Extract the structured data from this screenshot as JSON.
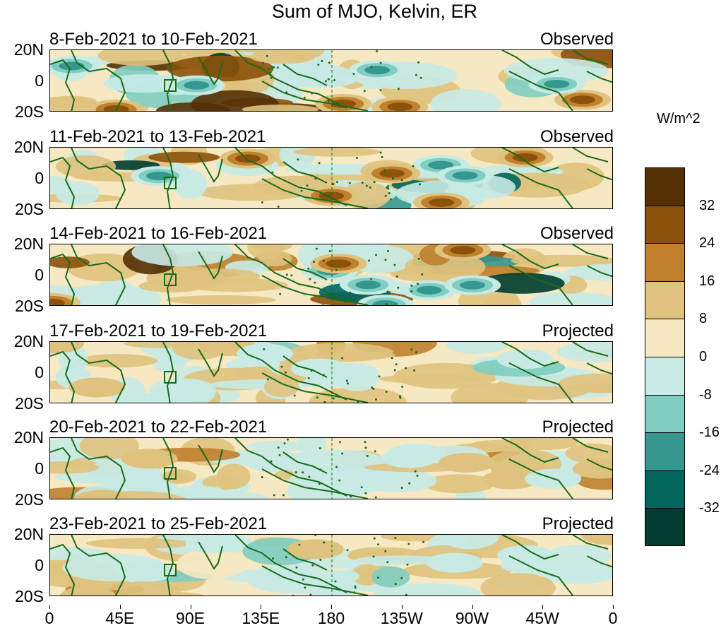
{
  "title": "Sum of MJO, Kelvin, ER",
  "units": "W/m^2",
  "panels": [
    {
      "date_range": "8-Feb-2021 to 10-Feb-2021",
      "status": "Observed"
    },
    {
      "date_range": "11-Feb-2021 to 13-Feb-2021",
      "status": "Observed"
    },
    {
      "date_range": "14-Feb-2021 to 16-Feb-2021",
      "status": "Observed"
    },
    {
      "date_range": "17-Feb-2021 to 19-Feb-2021",
      "status": "Projected"
    },
    {
      "date_range": "20-Feb-2021 to 22-Feb-2021",
      "status": "Projected"
    },
    {
      "date_range": "23-Feb-2021 to 25-Feb-2021",
      "status": "Projected"
    }
  ],
  "lat_labels": [
    "20N",
    "0",
    "20S"
  ],
  "lon_labels": [
    "0",
    "45E",
    "90E",
    "135E",
    "180",
    "135W",
    "90W",
    "45W",
    "0"
  ],
  "colorbar": {
    "labels": [
      "32",
      "24",
      "16",
      "8",
      "0",
      "-8",
      "-16",
      "-24",
      "-32"
    ],
    "colors": [
      "#543005",
      "#8c510a",
      "#bf812d",
      "#dfc27d",
      "#f6e8c3",
      "#c7eae5",
      "#80cdc1",
      "#35978f",
      "#01665e",
      "#003c30"
    ]
  },
  "map_colors": {
    "coast": "#1a6b1a",
    "dateline": "#1a6b1a"
  }
}
